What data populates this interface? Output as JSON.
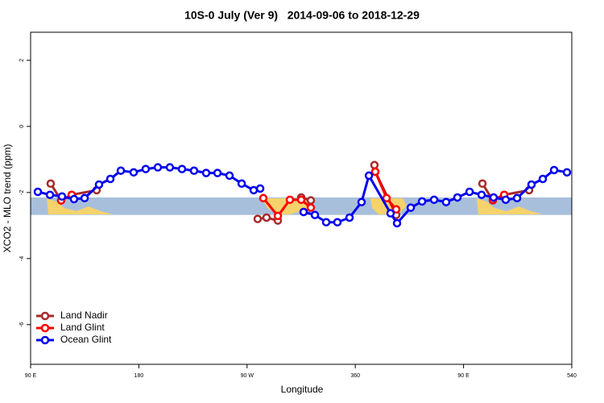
{
  "chart_data": {
    "type": "line",
    "title": "10S-0 July (Ver 9)   2014-09-06 to 2018-12-29",
    "xlabel": "Longitude",
    "ylabel": "XCO2 - MLO trend (ppm)",
    "xlim": [
      90,
      540
    ],
    "ylim": [
      -7.2,
      2.85
    ],
    "xticks": [
      {
        "value": 90,
        "label": "90 E"
      },
      180,
      {
        "value": 270,
        "label": "90 W"
      },
      360,
      {
        "value": 450,
        "label": "90 E"
      },
      540
    ],
    "yticks": [
      2,
      0,
      -2,
      -4,
      -6
    ],
    "band": [
      -2.68,
      -2.15
    ],
    "band_color": "#a8bfdc",
    "legend": "bottom-left",
    "series": [
      {
        "name": "Land Nadir",
        "color": "#a52a2a",
        "x": [
          106.7,
          115.4,
          124.2,
          144.9,
          null,
          278.8,
          286.2,
          295.6,
          null,
          315.0,
          323.0,
          null,
          375.9,
          376.6,
          394.0,
          null,
          465.7,
          474.4,
          483.8,
          504.5
        ],
        "values": [
          -1.73,
          -2.24,
          -2.07,
          -1.93,
          null,
          -2.8,
          -2.76,
          -2.85,
          null,
          -2.15,
          -2.24,
          null,
          -1.17,
          -1.37,
          -2.68,
          null,
          -1.73,
          -2.24,
          -2.07,
          -1.93
        ]
      },
      {
        "name": "Land Glint",
        "color": "#ff0000",
        "x": [
          115.4,
          124.2,
          null,
          283.5,
          295.6,
          305.6,
          315.0,
          323.0,
          null,
          376.6,
          386.0,
          394.0,
          null,
          474.4,
          483.8
        ],
        "values": [
          -2.24,
          -2.07,
          null,
          -2.17,
          -2.71,
          -2.22,
          -2.22,
          -2.46,
          null,
          -1.37,
          -2.17,
          -2.51,
          null,
          -2.22,
          -2.07
        ]
      },
      {
        "name": "Ocean Glint",
        "color": "#0000ee",
        "x": [
          96.0,
          106.1,
          116.1,
          126.1,
          134.9,
          146.9,
          156.3,
          165.0,
          175.7,
          185.7,
          195.8,
          205.8,
          215.9,
          225.9,
          236.0,
          245.4,
          255.4,
          265.5,
          275.5,
          280.9,
          null,
          317.0,
          326.4,
          335.8,
          345.1,
          355.2,
          365.2,
          371.3,
          389.3,
          394.7,
          406.1,
          415.5,
          425.5,
          435.5,
          444.9,
          455.0,
          465.0,
          475.0,
          485.1,
          494.5,
          506.5,
          515.9,
          525.3,
          536.0
        ],
        "values": [
          -1.98,
          -2.07,
          -2.12,
          -2.2,
          -2.17,
          -1.76,
          -1.59,
          -1.34,
          -1.39,
          -1.29,
          -1.24,
          -1.24,
          -1.29,
          -1.34,
          -1.41,
          -1.41,
          -1.49,
          -1.73,
          -1.93,
          -1.88,
          null,
          -2.59,
          -2.68,
          -2.9,
          -2.9,
          -2.76,
          -2.29,
          -1.49,
          -2.63,
          -2.93,
          -2.46,
          -2.27,
          -2.22,
          -2.29,
          -2.15,
          -1.98,
          -2.07,
          -2.15,
          -2.22,
          -2.17,
          -1.76,
          -1.59,
          -1.32,
          -1.39
        ]
      }
    ]
  }
}
